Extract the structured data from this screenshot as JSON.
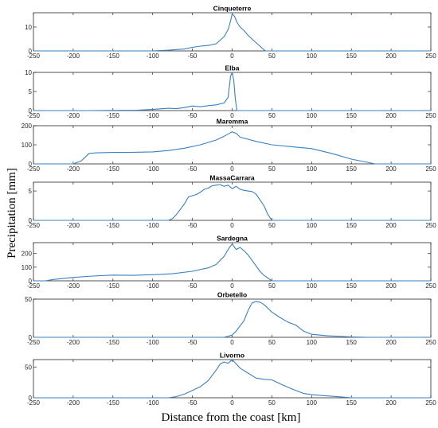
{
  "figure": {
    "ylabel": "Precipitation [mm]",
    "xlabel": "Distance from the coast [km]",
    "line_color": "#3a7fc1"
  },
  "chart_data": [
    {
      "type": "line",
      "title": "Cinqueterre",
      "xlim": [
        -250,
        250
      ],
      "ylim": [
        0,
        16
      ],
      "yticks": [
        0,
        10
      ],
      "xticks": [
        -250,
        -200,
        -150,
        -100,
        -50,
        0,
        50,
        100,
        150,
        200,
        250
      ],
      "x": [
        -250,
        -100,
        -80,
        -60,
        -50,
        -40,
        -30,
        -20,
        -15,
        -10,
        -5,
        -2,
        0,
        3,
        6,
        10,
        15,
        20,
        30,
        35,
        40,
        42,
        250
      ],
      "y": [
        0,
        0,
        0.3,
        0.8,
        1.5,
        2.0,
        2.3,
        3.0,
        4.5,
        6.0,
        9.0,
        12.5,
        15.5,
        14.5,
        12.0,
        10.0,
        8.5,
        6.5,
        3.5,
        2.0,
        0.5,
        0,
        0
      ]
    },
    {
      "type": "line",
      "title": "Elba",
      "xlim": [
        -250,
        250
      ],
      "ylim": [
        0,
        10
      ],
      "yticks": [
        0,
        5,
        10
      ],
      "xticks": [
        -250,
        -200,
        -150,
        -100,
        -50,
        0,
        50,
        100,
        150,
        200,
        250
      ],
      "x": [
        -250,
        -180,
        -120,
        -100,
        -80,
        -70,
        -60,
        -50,
        -45,
        -40,
        -30,
        -20,
        -10,
        -5,
        -2,
        0,
        2,
        4,
        6,
        250
      ],
      "y": [
        0,
        0,
        0.1,
        0.3,
        0.6,
        0.5,
        0.8,
        1.2,
        1.1,
        1.0,
        1.3,
        1.5,
        2.0,
        3.5,
        9.0,
        10.0,
        8.0,
        3.0,
        0,
        0
      ]
    },
    {
      "type": "line",
      "title": "Maremma",
      "xlim": [
        -250,
        250
      ],
      "ylim": [
        0,
        200
      ],
      "yticks": [
        0,
        100,
        200
      ],
      "xticks": [
        -250,
        -200,
        -150,
        -100,
        -50,
        0,
        50,
        100,
        150,
        200,
        250
      ],
      "x": [
        -250,
        -200,
        -190,
        -180,
        -170,
        -150,
        -130,
        -100,
        -80,
        -60,
        -40,
        -20,
        -10,
        0,
        5,
        10,
        30,
        50,
        75,
        100,
        125,
        150,
        180,
        250
      ],
      "y": [
        0,
        0,
        15,
        55,
        58,
        60,
        60,
        63,
        70,
        82,
        100,
        125,
        145,
        168,
        160,
        140,
        118,
        100,
        90,
        80,
        55,
        25,
        0,
        0
      ]
    },
    {
      "type": "line",
      "title": "MassaCarrara",
      "xlim": [
        -250,
        250
      ],
      "ylim": [
        0,
        6.5
      ],
      "yticks": [
        0,
        5
      ],
      "xticks": [
        -250,
        -200,
        -150,
        -100,
        -50,
        0,
        50,
        100,
        150,
        200,
        250
      ],
      "x": [
        -250,
        -80,
        -75,
        -70,
        -60,
        -55,
        -50,
        -45,
        -40,
        -35,
        -30,
        -25,
        -20,
        -15,
        -10,
        -5,
        0,
        5,
        10,
        15,
        20,
        25,
        30,
        35,
        40,
        45,
        50,
        250
      ],
      "y": [
        0,
        0,
        0.3,
        1.0,
        2.8,
        4.0,
        4.2,
        4.4,
        4.8,
        5.3,
        5.5,
        5.9,
        6.0,
        6.1,
        5.8,
        6.0,
        5.4,
        5.8,
        5.3,
        5.1,
        5.0,
        4.9,
        4.5,
        3.5,
        2.5,
        1.0,
        0,
        0
      ]
    },
    {
      "type": "line",
      "title": "Sardegna",
      "xlim": [
        -250,
        250
      ],
      "ylim": [
        0,
        280
      ],
      "yticks": [
        0,
        100,
        200
      ],
      "xticks": [
        -250,
        -200,
        -150,
        -100,
        -50,
        0,
        50,
        100,
        150,
        200,
        250
      ],
      "x": [
        -250,
        -235,
        -225,
        -200,
        -175,
        -150,
        -125,
        -100,
        -75,
        -50,
        -30,
        -20,
        -10,
        -5,
        0,
        5,
        10,
        15,
        20,
        30,
        35,
        40,
        45,
        50,
        250
      ],
      "y": [
        0,
        0,
        10,
        25,
        35,
        42,
        40,
        45,
        52,
        70,
        95,
        120,
        180,
        230,
        270,
        230,
        245,
        220,
        190,
        110,
        70,
        40,
        20,
        0,
        0
      ]
    },
    {
      "type": "line",
      "title": "Orbetello",
      "xlim": [
        -250,
        250
      ],
      "ylim": [
        0,
        50
      ],
      "yticks": [
        0,
        50
      ],
      "xticks": [
        -250,
        -200,
        -150,
        -100,
        -50,
        0,
        50,
        100,
        150,
        200,
        250
      ],
      "x": [
        -250,
        -10,
        0,
        5,
        10,
        15,
        20,
        25,
        30,
        35,
        40,
        45,
        50,
        60,
        70,
        80,
        90,
        100,
        120,
        140,
        150,
        170,
        250
      ],
      "y": [
        0,
        0,
        3,
        8,
        15,
        22,
        35,
        45,
        47,
        46,
        43,
        38,
        33,
        26,
        20,
        16,
        8,
        4,
        2,
        1,
        0.5,
        0,
        0
      ]
    },
    {
      "type": "line",
      "title": "Livorno",
      "xlim": [
        -250,
        250
      ],
      "ylim": [
        0,
        62
      ],
      "yticks": [
        0,
        50
      ],
      "xticks": [
        -250,
        -200,
        -150,
        -100,
        -50,
        0,
        50,
        100,
        150,
        200,
        250
      ],
      "x": [
        -250,
        -80,
        -70,
        -60,
        -50,
        -40,
        -30,
        -20,
        -15,
        -10,
        -5,
        0,
        5,
        10,
        20,
        30,
        40,
        50,
        60,
        70,
        80,
        90,
        100,
        120,
        140,
        150,
        250
      ],
      "y": [
        0,
        0,
        2,
        6,
        12,
        18,
        28,
        45,
        55,
        58,
        56,
        62,
        55,
        48,
        40,
        32,
        30,
        29,
        23,
        17,
        12,
        7,
        5,
        3,
        1,
        0,
        0
      ]
    }
  ]
}
